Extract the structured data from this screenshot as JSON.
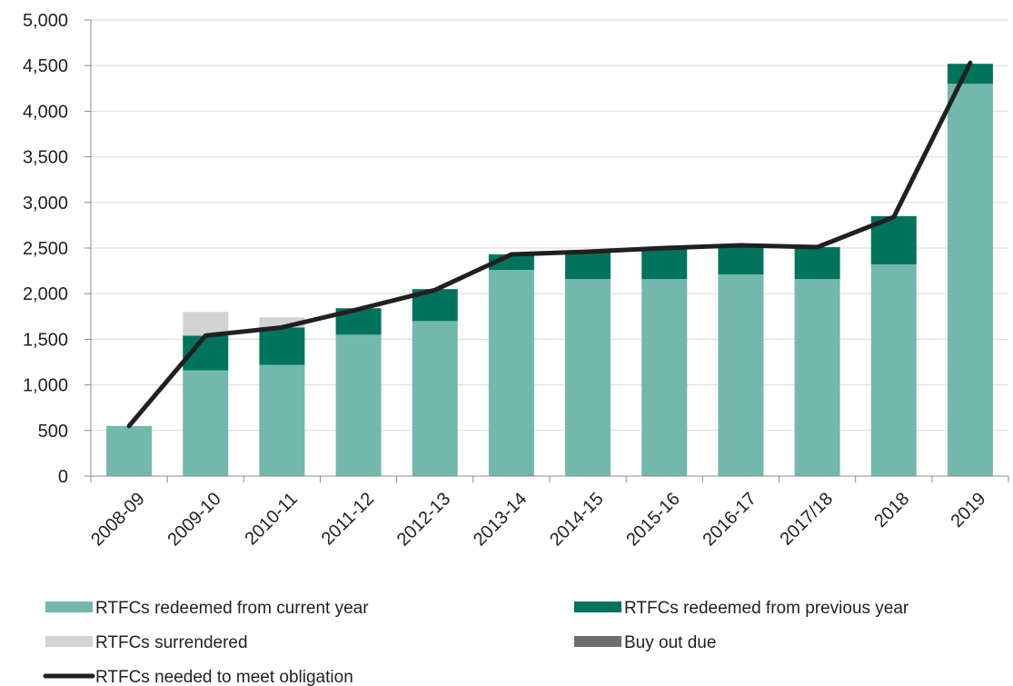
{
  "chart_data": {
    "type": "bar",
    "categories": [
      "2008-09",
      "2009-10",
      "2010-11",
      "2011-12",
      "2012-13",
      "2013-14",
      "2014-15",
      "2015-16",
      "2016-17",
      "2017/18",
      "2018",
      "2019"
    ],
    "series": [
      {
        "name": "RTFCs redeemed from current year",
        "color": "#72b8ac",
        "values": [
          550,
          1160,
          1220,
          1550,
          1700,
          2260,
          2160,
          2160,
          2210,
          2160,
          2320,
          4300
        ]
      },
      {
        "name": "RTFCs redeemed from previous year",
        "color": "#00735c",
        "values": [
          0,
          380,
          410,
          290,
          350,
          170,
          300,
          330,
          310,
          350,
          530,
          220
        ]
      },
      {
        "name": "RTFCs surrendered",
        "color": "#d3d3d3",
        "values": [
          0,
          260,
          110,
          0,
          0,
          0,
          0,
          0,
          0,
          0,
          0,
          0
        ]
      },
      {
        "name": "Buy out due",
        "color": "#6d6d6d",
        "values": [
          0,
          0,
          0,
          0,
          0,
          0,
          0,
          0,
          0,
          0,
          0,
          0
        ]
      }
    ],
    "line": {
      "name": "RTFCs needed to meet obligation",
      "color": "#231f20",
      "values": [
        550,
        1540,
        1630,
        1830,
        2040,
        2430,
        2460,
        2500,
        2530,
        2510,
        2840,
        4530
      ]
    },
    "ylim": [
      0,
      5000
    ],
    "yticks": [
      0,
      500,
      1000,
      1500,
      2000,
      2500,
      3000,
      3500,
      4000,
      4500,
      5000
    ],
    "ytick_labels": [
      "0",
      "500",
      "1,000",
      "1,500",
      "2,000",
      "2,500",
      "3,000",
      "3,500",
      "4,000",
      "4,500",
      "5,000"
    ],
    "grid": true,
    "legend_position": "bottom",
    "title": "",
    "xlabel": "",
    "ylabel": ""
  }
}
